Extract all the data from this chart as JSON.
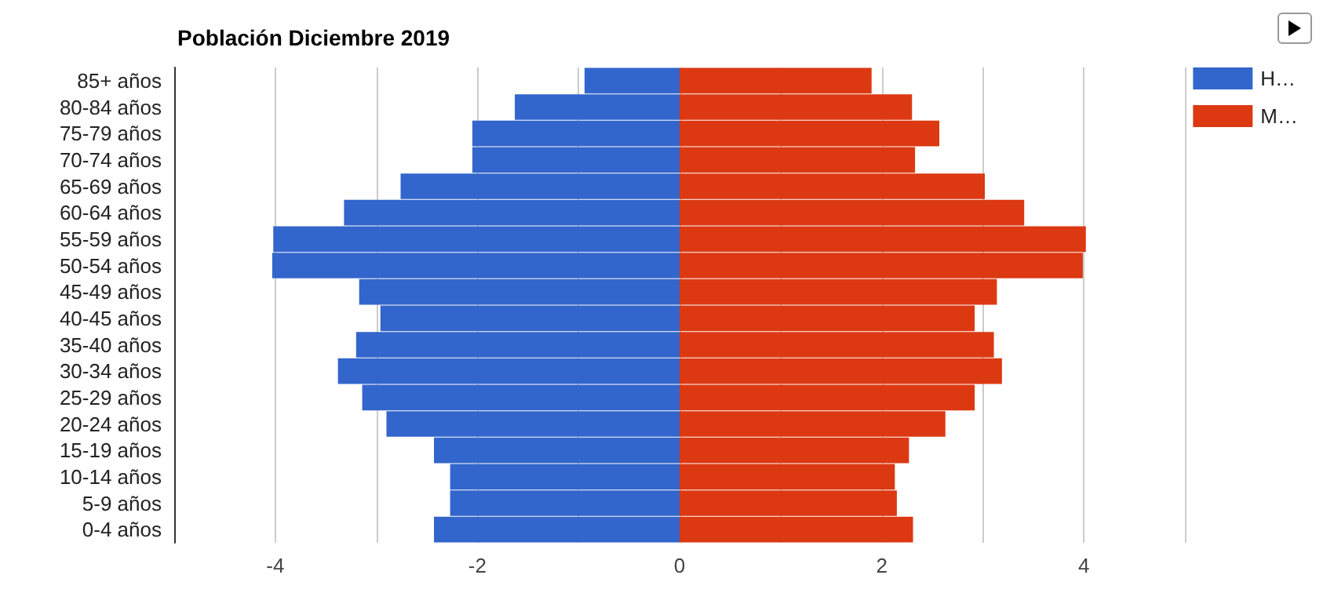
{
  "chart_data": {
    "type": "bar",
    "orientation": "horizontal",
    "stacked": true,
    "title": "Población Diciembre 2019",
    "categories": [
      "85+ años",
      "80-84 años",
      "75-79 años",
      "70-74 años",
      "65-69 años",
      "60-64 años",
      "55-59 años",
      "50-54 años",
      "45-49 años",
      "40-45 años",
      "35-40 años",
      "30-34 años",
      "25-29 años",
      "20-24 años",
      "15-19 años",
      "10-14 años",
      "5-9 años",
      "0-4 años"
    ],
    "series": [
      {
        "name": "H…",
        "color": "#3366cc",
        "values": [
          -0.94,
          -1.63,
          -2.05,
          -2.05,
          -2.76,
          -3.32,
          -4.02,
          -4.03,
          -3.17,
          -2.96,
          -3.2,
          -3.38,
          -3.14,
          -2.9,
          -2.43,
          -2.27,
          -2.27,
          -2.43
        ]
      },
      {
        "name": "M…",
        "color": "#dc3912",
        "values": [
          1.9,
          2.3,
          2.57,
          2.33,
          3.02,
          3.41,
          4.02,
          3.99,
          3.14,
          2.92,
          3.11,
          3.19,
          2.92,
          2.63,
          2.27,
          2.13,
          2.15,
          2.31
        ]
      }
    ],
    "xlim": [
      -5,
      5
    ],
    "xticks": [
      {
        "value": -5,
        "label": null
      },
      -4,
      {
        "value": -3,
        "label": null
      },
      -2,
      {
        "value": -1,
        "label": null
      },
      0,
      {
        "value": 1,
        "label": null
      },
      2,
      {
        "value": 3,
        "label": null
      },
      4,
      {
        "value": 5,
        "label": null
      }
    ],
    "grid": "x",
    "legend": "top right"
  }
}
